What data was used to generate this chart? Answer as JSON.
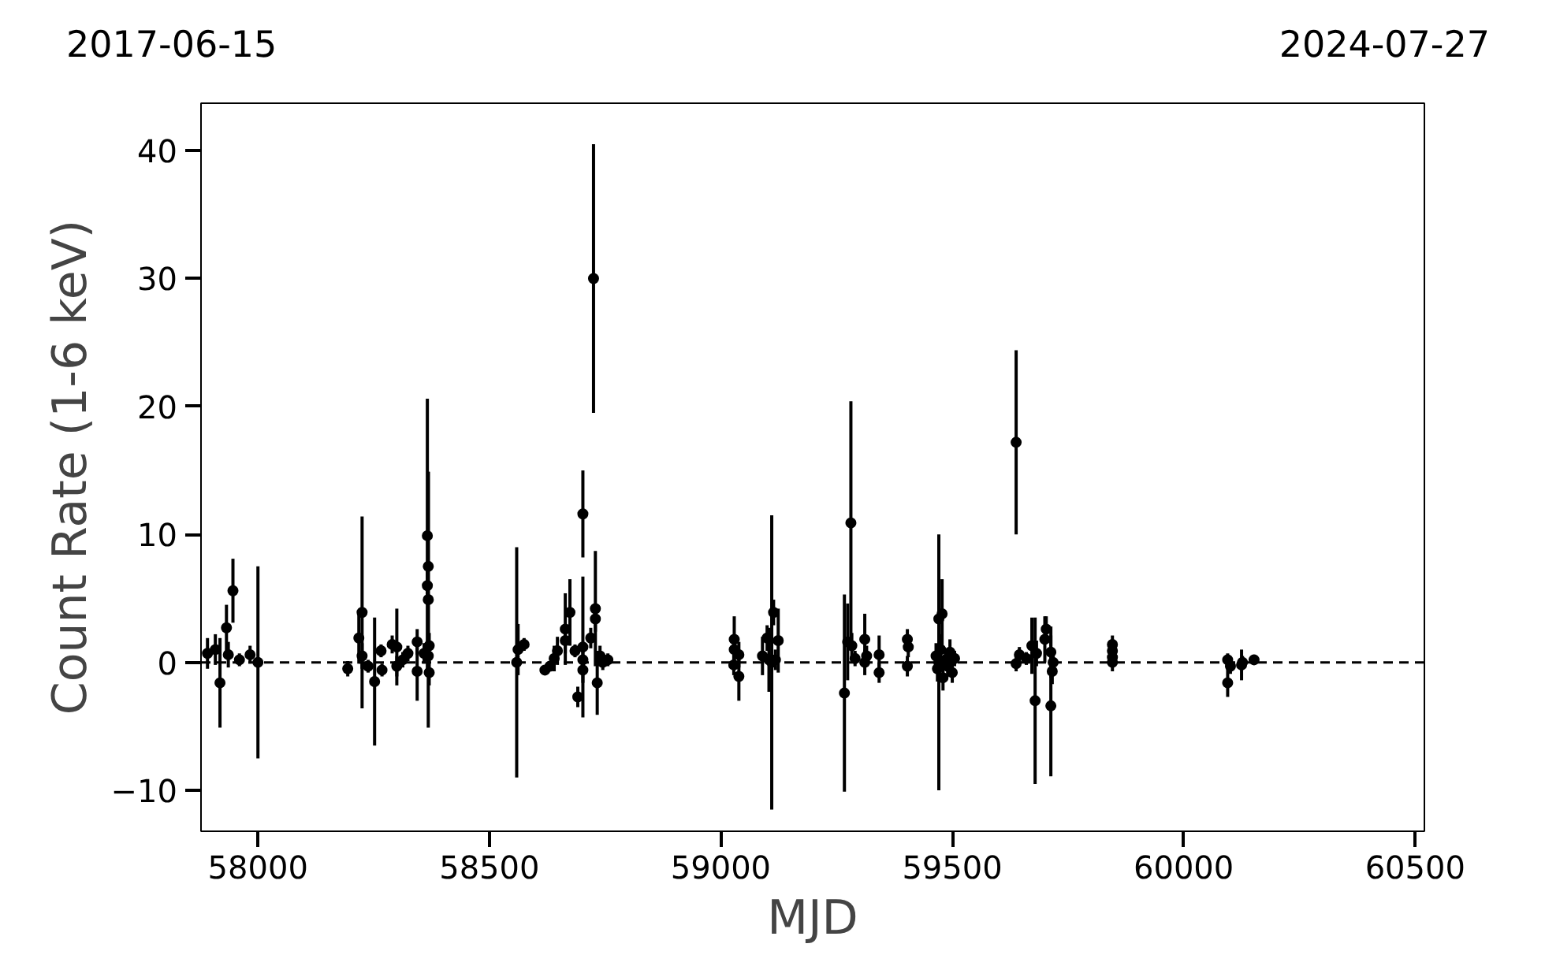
{
  "chart_data": {
    "type": "scatter",
    "xlabel": "MJD",
    "ylabel": "Count Rate (1-6 keV)",
    "annotations": [
      "2017-06-15",
      "2024-07-27"
    ],
    "xlim": [
      57877,
      60520
    ],
    "ylim": [
      -13.2,
      43.7
    ],
    "xticks": [
      58000,
      58500,
      59000,
      59500,
      60000,
      60500
    ],
    "yticks": [
      {
        "value": -10,
        "label": "−10"
      },
      0,
      10,
      20,
      30,
      40
    ],
    "grid": false,
    "marker": "circle",
    "ref_lines": [
      {
        "axis": "y",
        "value": 0,
        "label": null,
        "color": "#000000",
        "line_style": "dashed"
      }
    ],
    "series": [
      {
        "color": "#000000",
        "x": [
          57891,
          57908,
          57918,
          57932,
          57936,
          57946,
          57960,
          57983,
          58000,
          58194,
          58218,
          58225,
          58225,
          58238,
          58252,
          58266,
          58268,
          58290,
          58300,
          58300,
          58313,
          58324,
          58344,
          58344,
          58359,
          58366,
          58368,
          58368,
          58366,
          58370,
          58368,
          58370,
          58559,
          58562,
          58575,
          58620,
          58631,
          58640,
          58647,
          58664,
          58664,
          58674,
          58685,
          58691,
          58702,
          58702,
          58702,
          58702,
          58719,
          58725,
          58729,
          58729,
          58733,
          58739,
          58745,
          58756,
          59029,
          59029,
          59028,
          59039,
          59039,
          59090,
          59100,
          59104,
          59110,
          59114,
          59118,
          59124,
          59267,
          59274,
          59281,
          59283,
          59290,
          59311,
          59311,
          59315,
          59342,
          59342,
          59403,
          59405,
          59403,
          59471,
          59478,
          59471,
          59465,
          59468,
          59475,
          59480,
          59485,
          59490,
          59495,
          59500,
          59505,
          59638,
          59638,
          59645,
          59660,
          59672,
          59679,
          59682,
          59700,
          59703,
          59713,
          59713,
          59716,
          59718,
          59846,
          59846,
          59846,
          59846,
          60095,
          60095,
          60101,
          60125,
          60127,
          60152
        ],
        "values": [
          0.7,
          1.0,
          -1.6,
          2.7,
          0.6,
          5.6,
          0.2,
          0.6,
          0.0,
          -0.5,
          1.9,
          3.9,
          0.5,
          -0.3,
          -1.5,
          0.9,
          -0.6,
          1.4,
          1.2,
          -0.3,
          0.2,
          0.7,
          1.6,
          -0.7,
          0.7,
          9.9,
          4.9,
          7.5,
          6.0,
          1.3,
          0.5,
          -0.8,
          0.0,
          1.0,
          1.4,
          -0.6,
          -0.3,
          0.3,
          0.9,
          2.6,
          1.7,
          3.9,
          0.9,
          -2.7,
          11.6,
          1.2,
          0.2,
          -0.6,
          1.9,
          30.0,
          4.2,
          3.4,
          -1.6,
          0.5,
          0.0,
          0.2,
          1.8,
          1.0,
          -0.2,
          0.6,
          -1.1,
          0.5,
          1.9,
          0.2,
          0.0,
          3.9,
          0.2,
          1.7,
          -2.4,
          1.6,
          10.9,
          1.3,
          0.3,
          1.8,
          0.0,
          0.5,
          0.6,
          -0.8,
          1.8,
          1.2,
          -0.3,
          3.4,
          3.8,
          0.0,
          0.5,
          -0.5,
          1.0,
          -1.2,
          0.2,
          -0.3,
          0.8,
          -0.8,
          0.3,
          17.2,
          -0.1,
          0.6,
          0.3,
          1.3,
          -3.0,
          0.7,
          1.8,
          2.6,
          0.8,
          -3.4,
          -0.7,
          0.0,
          1.4,
          0.9,
          0.4,
          0.0,
          0.2,
          -1.6,
          -0.3,
          -0.2,
          0.0,
          0.2
        ],
        "errors": [
          1.2,
          1.2,
          3.5,
          1.8,
          1.0,
          2.5,
          0.5,
          0.7,
          7.5,
          0.6,
          2.0,
          7.5,
          1.0,
          0.5,
          5.0,
          0.5,
          0.5,
          0.7,
          3.0,
          0.8,
          0.6,
          0.6,
          1.0,
          2.3,
          0.8,
          10.7,
          10.0,
          7.4,
          1.5,
          1.0,
          1.0,
          1.0,
          9.0,
          2.0,
          0.5,
          0.3,
          0.4,
          1.0,
          1.1,
          2.8,
          1.0,
          2.6,
          0.5,
          0.8,
          3.4,
          5.5,
          1.0,
          1.0,
          0.8,
          10.5,
          4.5,
          1.0,
          2.5,
          0.8,
          0.6,
          0.5,
          1.8,
          1.0,
          0.8,
          1.0,
          1.9,
          1.5,
          1.0,
          2.5,
          11.5,
          1.0,
          0.8,
          2.5,
          7.7,
          3.0,
          9.5,
          1.0,
          0.6,
          2.0,
          1.0,
          0.8,
          1.5,
          0.8,
          0.8,
          0.8,
          0.8,
          2.5,
          2.7,
          10.0,
          1.0,
          1.0,
          1.2,
          1.0,
          0.8,
          0.8,
          1.0,
          0.8,
          0.6,
          7.2,
          0.6,
          0.6,
          0.5,
          2.2,
          6.5,
          1.0,
          1.8,
          1.0,
          2.0,
          5.5,
          1.0,
          1.0,
          0.7,
          0.7,
          0.7,
          0.7,
          0.5,
          1.1,
          0.6,
          1.2,
          0.5,
          0.4
        ]
      }
    ]
  }
}
